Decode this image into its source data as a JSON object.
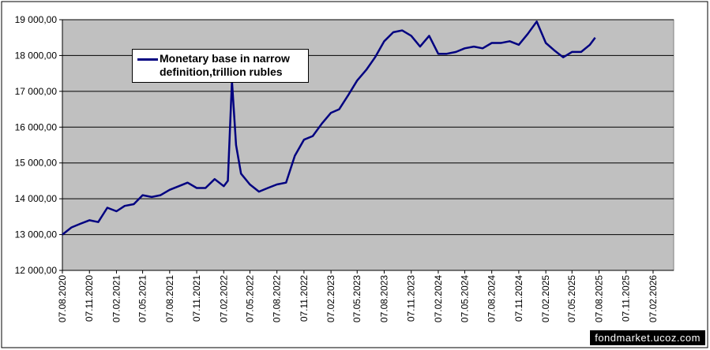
{
  "watermark": "fondmarket.ucoz.com",
  "chart_data": {
    "type": "line",
    "x": [
      "07.08.2020",
      "07.09.2020",
      "07.10.2020",
      "07.11.2020",
      "07.12.2020",
      "07.01.2021",
      "07.02.2021",
      "07.03.2021",
      "07.04.2021",
      "07.05.2021",
      "07.06.2021",
      "07.07.2021",
      "07.08.2021",
      "07.09.2021",
      "07.10.2021",
      "07.11.2021",
      "07.12.2021",
      "07.01.2022",
      "07.02.2022",
      "21.02.2022",
      "07.03.2022",
      "21.03.2022",
      "07.04.2022",
      "07.05.2022",
      "07.06.2022",
      "07.07.2022",
      "07.08.2022",
      "07.09.2022",
      "07.10.2022",
      "07.11.2022",
      "07.12.2022",
      "07.01.2023",
      "07.02.2023",
      "07.03.2023",
      "07.04.2023",
      "07.05.2023",
      "07.06.2023",
      "07.07.2023",
      "07.08.2023",
      "07.09.2023",
      "07.10.2023",
      "07.11.2023",
      "07.12.2023",
      "07.01.2024",
      "07.02.2024",
      "07.03.2024",
      "07.04.2024",
      "07.05.2024",
      "07.06.2024",
      "07.07.2024",
      "07.08.2024",
      "07.09.2024",
      "07.10.2024",
      "07.11.2024",
      "07.12.2024",
      "07.01.2025",
      "07.02.2025",
      "07.03.2025",
      "07.04.2025",
      "07.05.2025",
      "07.06.2025",
      "07.07.2025",
      "25.07.2025"
    ],
    "series": [
      {
        "name": "Monetary base in narrow definition,trillion rubles",
        "color": "#000080",
        "values": [
          13000,
          13200,
          13300,
          13400,
          13350,
          13750,
          13650,
          13800,
          13850,
          14100,
          14050,
          14100,
          14250,
          14350,
          14450,
          14300,
          14300,
          14550,
          14350,
          14500,
          17300,
          15500,
          14700,
          14400,
          14200,
          14300,
          14400,
          14450,
          15200,
          15650,
          15750,
          16100,
          16400,
          16500,
          16900,
          17300,
          17600,
          17950,
          18400,
          18650,
          18700,
          18550,
          18250,
          18550,
          18050,
          18050,
          18100,
          18200,
          18250,
          18200,
          18350,
          18350,
          18400,
          18300,
          18600,
          18950,
          18350,
          18150,
          17950,
          18100,
          18100,
          18300,
          18500
        ]
      }
    ],
    "xlim": [
      "07.08.2020",
      "18.04.2026"
    ],
    "xticks": [
      "07.08.2020",
      "07.11.2020",
      "07.02.2021",
      "07.05.2021",
      "07.08.2021",
      "07.11.2021",
      "07.02.2022",
      "07.05.2022",
      "07.08.2022",
      "07.11.2022",
      "07.02.2023",
      "07.05.2023",
      "07.08.2023",
      "07.11.2023",
      "07.02.2024",
      "07.05.2024",
      "07.08.2024",
      "07.11.2024",
      "07.02.2025",
      "07.05.2025",
      "07.08.2025",
      "07.11.2025",
      "07.02.2026"
    ],
    "ylim": [
      12000,
      19000
    ],
    "yticks": [
      {
        "value": 12000,
        "label": "12 000,00"
      },
      {
        "value": 13000,
        "label": "13 000,00"
      },
      {
        "value": 14000,
        "label": "14 000,00"
      },
      {
        "value": 15000,
        "label": "15 000,00"
      },
      {
        "value": 16000,
        "label": "16 000,00"
      },
      {
        "value": 17000,
        "label": "17 000,00"
      },
      {
        "value": 18000,
        "label": "18 000,00"
      },
      {
        "value": 19000,
        "label": "19 000,00"
      }
    ],
    "grid": true
  }
}
